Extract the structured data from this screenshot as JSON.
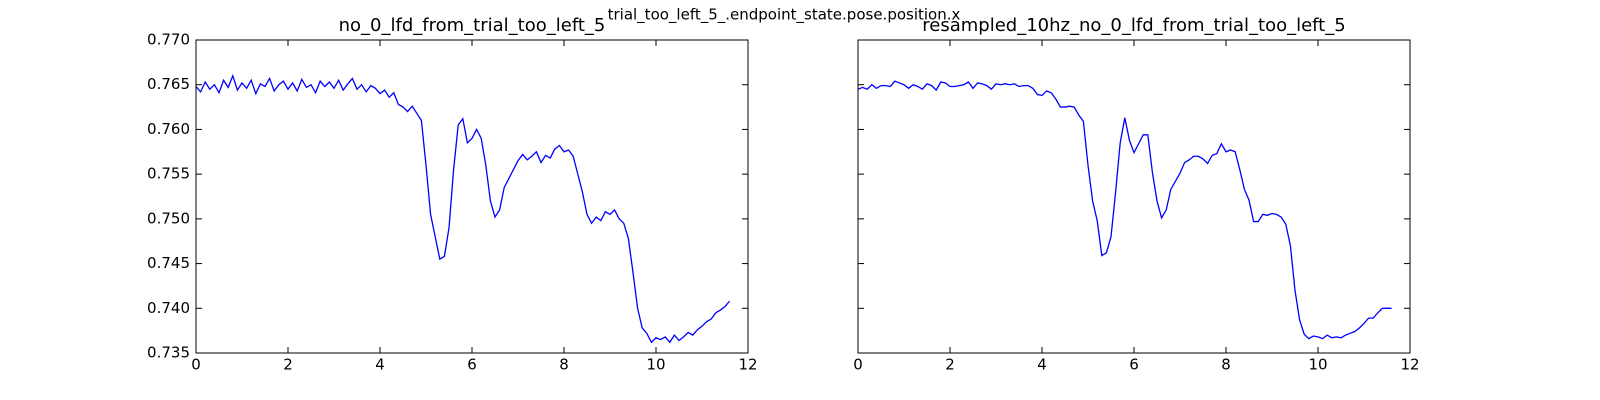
{
  "title": "trial_too_left_5_.endpoint_state.pose.position.x",
  "chart_data": [
    {
      "type": "line",
      "title": "no_0_lfd_from_trial_too_left_5",
      "color": "#0000ff",
      "xlim": [
        0,
        12
      ],
      "xticks": [
        0,
        2,
        4,
        6,
        8,
        10,
        12
      ],
      "ylim": [
        0.735,
        0.77
      ],
      "yticks": [
        0.735,
        {
          "value": 0.74,
          "label": "0.740"
        },
        0.745,
        {
          "value": 0.75,
          "label": "0.750"
        },
        0.755,
        {
          "value": 0.76,
          "label": "0.760"
        },
        0.765,
        {
          "value": 0.77,
          "label": "0.770"
        }
      ],
      "y_tick_labels": true,
      "x": [
        0,
        0.1,
        0.2,
        0.3,
        0.4,
        0.5,
        0.6,
        0.7,
        0.8,
        0.9,
        1,
        1.1,
        1.2,
        1.3,
        1.4,
        1.5,
        1.6,
        1.7,
        1.8,
        1.9,
        2,
        2.1,
        2.2,
        2.3,
        2.4,
        2.5,
        2.6,
        2.7,
        2.8,
        2.9,
        3,
        3.1,
        3.2,
        3.3,
        3.4,
        3.5,
        3.6,
        3.7,
        3.8,
        3.9,
        4,
        4.1,
        4.2,
        4.3,
        4.4,
        4.5,
        4.6,
        4.7,
        4.8,
        4.9,
        5,
        5.1,
        5.2,
        5.3,
        5.4,
        5.5,
        5.6,
        5.7,
        5.8,
        5.9,
        6,
        6.1,
        6.2,
        6.3,
        6.4,
        6.5,
        6.6,
        6.7,
        6.8,
        6.9,
        7,
        7.1,
        7.2,
        7.3,
        7.4,
        7.5,
        7.6,
        7.7,
        7.8,
        7.9,
        8,
        8.1,
        8.2,
        8.3,
        8.4,
        8.5,
        8.6,
        8.7,
        8.8,
        8.9,
        9,
        9.1,
        9.2,
        9.3,
        9.4,
        9.5,
        9.6,
        9.7,
        9.8,
        9.9,
        10,
        10.1,
        10.2,
        10.3,
        10.4,
        10.5,
        10.6,
        10.7,
        10.8,
        10.9,
        11,
        11.1,
        11.2,
        11.3,
        11.4,
        11.5,
        11.6
      ],
      "values": [
        0.7648,
        0.7642,
        0.7653,
        0.7645,
        0.765,
        0.7641,
        0.7655,
        0.7647,
        0.766,
        0.7644,
        0.7652,
        0.7646,
        0.7655,
        0.764,
        0.7651,
        0.7648,
        0.7657,
        0.7643,
        0.765,
        0.7654,
        0.7645,
        0.7652,
        0.7643,
        0.7656,
        0.7647,
        0.765,
        0.7641,
        0.7654,
        0.7648,
        0.7653,
        0.7646,
        0.7655,
        0.7644,
        0.7651,
        0.7657,
        0.7645,
        0.765,
        0.7642,
        0.7649,
        0.7646,
        0.764,
        0.7644,
        0.7636,
        0.7641,
        0.7628,
        0.7625,
        0.762,
        0.7626,
        0.7618,
        0.761,
        0.756,
        0.7505,
        0.748,
        0.7455,
        0.7458,
        0.749,
        0.7555,
        0.7605,
        0.7612,
        0.7585,
        0.759,
        0.76,
        0.759,
        0.756,
        0.752,
        0.7502,
        0.751,
        0.7535,
        0.7545,
        0.7555,
        0.7565,
        0.7572,
        0.7566,
        0.757,
        0.7575,
        0.7563,
        0.7571,
        0.7568,
        0.7578,
        0.7582,
        0.7575,
        0.7577,
        0.757,
        0.755,
        0.753,
        0.7505,
        0.7495,
        0.7502,
        0.7498,
        0.7508,
        0.7505,
        0.751,
        0.75,
        0.7495,
        0.7478,
        0.744,
        0.74,
        0.7378,
        0.7372,
        0.7362,
        0.7367,
        0.7365,
        0.7368,
        0.7362,
        0.737,
        0.7364,
        0.7368,
        0.7373,
        0.737,
        0.7376,
        0.738,
        0.7385,
        0.7388,
        0.7395,
        0.7398,
        0.7402,
        0.7408
      ]
    },
    {
      "type": "line",
      "title": "resampled_10hz_no_0_lfd_from_trial_too_left_5",
      "color": "#0000ff",
      "xlim": [
        0,
        12
      ],
      "xticks": [
        0,
        2,
        4,
        6,
        8,
        10,
        12
      ],
      "ylim": [
        0.735,
        0.77
      ],
      "yticks": [
        0.735,
        0.74,
        0.745,
        0.75,
        0.755,
        0.76,
        0.765,
        0.77
      ],
      "y_tick_labels": false,
      "x": [
        0,
        0.1,
        0.2,
        0.3,
        0.4,
        0.5,
        0.6,
        0.7,
        0.8,
        0.9,
        1,
        1.1,
        1.2,
        1.3,
        1.4,
        1.5,
        1.6,
        1.7,
        1.8,
        1.9,
        2,
        2.1,
        2.2,
        2.3,
        2.4,
        2.5,
        2.6,
        2.7,
        2.8,
        2.9,
        3,
        3.1,
        3.2,
        3.3,
        3.4,
        3.5,
        3.6,
        3.7,
        3.8,
        3.9,
        4,
        4.1,
        4.2,
        4.3,
        4.4,
        4.5,
        4.6,
        4.7,
        4.8,
        4.9,
        5,
        5.1,
        5.2,
        5.3,
        5.4,
        5.5,
        5.6,
        5.7,
        5.8,
        5.9,
        6,
        6.1,
        6.2,
        6.3,
        6.4,
        6.5,
        6.6,
        6.7,
        6.8,
        6.9,
        7,
        7.1,
        7.2,
        7.3,
        7.4,
        7.5,
        7.6,
        7.7,
        7.8,
        7.9,
        8,
        8.1,
        8.2,
        8.3,
        8.4,
        8.5,
        8.6,
        8.7,
        8.8,
        8.9,
        9,
        9.1,
        9.2,
        9.3,
        9.4,
        9.5,
        9.6,
        9.7,
        9.8,
        9.9,
        10,
        10.1,
        10.2,
        10.3,
        10.4,
        10.5,
        10.6,
        10.7,
        10.8,
        10.9,
        11,
        11.1,
        11.2,
        11.3,
        11.4,
        11.5,
        11.6
      ],
      "values": [
        0.7645,
        0.7647,
        0.7645,
        0.765,
        0.7646,
        0.7649,
        0.7649,
        0.7648,
        0.7654,
        0.7652,
        0.765,
        0.7646,
        0.765,
        0.7648,
        0.7645,
        0.7651,
        0.7649,
        0.7644,
        0.7653,
        0.7652,
        0.7648,
        0.7648,
        0.7649,
        0.765,
        0.7653,
        0.7646,
        0.7652,
        0.7651,
        0.7649,
        0.7645,
        0.7651,
        0.765,
        0.7651,
        0.765,
        0.7651,
        0.7648,
        0.7649,
        0.7649,
        0.7646,
        0.7639,
        0.7638,
        0.7643,
        0.7641,
        0.7634,
        0.7625,
        0.7625,
        0.7626,
        0.7625,
        0.7616,
        0.7609,
        0.756,
        0.752,
        0.7498,
        0.7459,
        0.7462,
        0.748,
        0.753,
        0.7585,
        0.7613,
        0.7588,
        0.7574,
        0.7584,
        0.7594,
        0.7594,
        0.7552,
        0.752,
        0.7501,
        0.751,
        0.7533,
        0.7542,
        0.7551,
        0.7563,
        0.7566,
        0.757,
        0.757,
        0.7567,
        0.7562,
        0.7571,
        0.7573,
        0.7584,
        0.7575,
        0.7577,
        0.7575,
        0.7555,
        0.7533,
        0.7521,
        0.7497,
        0.7497,
        0.7505,
        0.7504,
        0.7506,
        0.7505,
        0.7502,
        0.7494,
        0.747,
        0.742,
        0.7387,
        0.7371,
        0.7366,
        0.7369,
        0.7368,
        0.7366,
        0.737,
        0.7367,
        0.7368,
        0.7367,
        0.737,
        0.7372,
        0.7374,
        0.7378,
        0.7383,
        0.7389,
        0.7389,
        0.7395,
        0.74,
        0.74,
        0.74
      ]
    }
  ]
}
